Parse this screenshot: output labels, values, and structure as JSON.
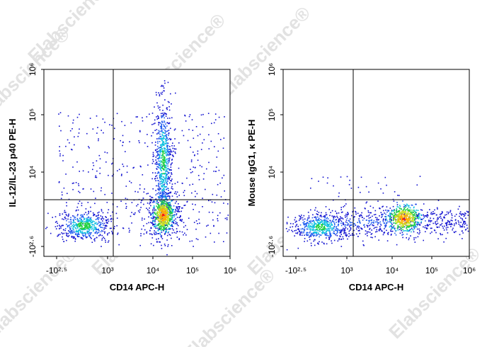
{
  "watermark": "Elabscience®",
  "chart_data": [
    {
      "type": "density",
      "xlabel": "CD14 APC-H",
      "ylabel": "IL-12/IL-23 p40 PE-H",
      "xticks": [
        {
          "value": -2.5,
          "label": "-10²·⁵"
        },
        {
          "value": 3,
          "label": "10³"
        },
        {
          "value": 4,
          "label": "10⁴"
        },
        {
          "value": 5,
          "label": "10⁵"
        },
        {
          "value": 6,
          "label": "10⁶"
        }
      ],
      "yticks": [
        {
          "value": -2.6,
          "label": "-10²·⁶"
        },
        {
          "value": 4,
          "label": "10⁴"
        },
        {
          "value": 5,
          "label": "10⁵"
        },
        {
          "value": 6,
          "label": "10⁶"
        }
      ]
    },
    {
      "type": "density",
      "xlabel": "CD14 APC-H",
      "ylabel": "Mouse IgG1, κ PE-H",
      "xticks": [
        {
          "value": -2.5,
          "label": "-10²·⁵"
        },
        {
          "value": 3,
          "label": "10³"
        },
        {
          "value": 4,
          "label": "10⁴"
        },
        {
          "value": 5,
          "label": "10⁵"
        },
        {
          "value": 6,
          "label": "10⁶"
        }
      ],
      "yticks": [
        {
          "value": -2.6,
          "label": "-10²·⁶"
        },
        {
          "value": 4,
          "label": "10⁴"
        },
        {
          "value": 5,
          "label": "10⁵"
        },
        {
          "value": 6,
          "label": "10⁶"
        }
      ]
    }
  ]
}
